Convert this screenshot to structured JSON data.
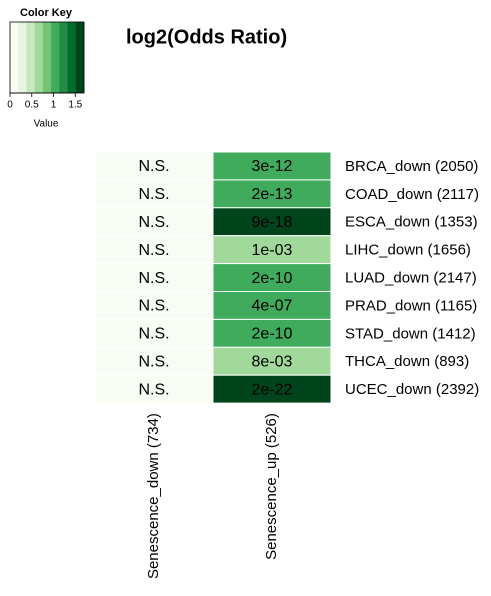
{
  "chart_data": {
    "type": "heatmap",
    "title": "log2(Odds Ratio)",
    "key_title": "Color Key",
    "key_label": "Value",
    "key_lim": [
      0,
      1.7
    ],
    "key_ticks": [
      0,
      0.5,
      1,
      1.5
    ],
    "colors": [
      "#f7fcf5",
      "#e5f5e0",
      "#c7e9c0",
      "#a1d99b",
      "#74c476",
      "#41ab5d",
      "#238b45",
      "#006d2c",
      "#00441b"
    ],
    "columns": [
      "Senescence_down (734)",
      "Senescence_up (526)"
    ],
    "rows": [
      "BRCA_down (2050)",
      "COAD_down (2117)",
      "ESCA_down (1353)",
      "LIHC_down (1656)",
      "LUAD_down (2147)",
      "PRAD_down (1165)",
      "STAD_down (1412)",
      "THCA_down (893)",
      "UCEC_down (2392)"
    ],
    "values": [
      [
        0.1,
        1.1
      ],
      [
        0.1,
        1.1
      ],
      [
        0.1,
        1.65
      ],
      [
        0.1,
        0.6
      ],
      [
        0.1,
        1.05
      ],
      [
        0.1,
        1.0
      ],
      [
        0.1,
        1.05
      ],
      [
        0.1,
        0.6
      ],
      [
        0.1,
        1.6
      ]
    ],
    "cell_texts": [
      [
        "N.S.",
        "3e-12"
      ],
      [
        "N.S.",
        "2e-13"
      ],
      [
        "N.S.",
        "9e-18"
      ],
      [
        "N.S.",
        "1e-03"
      ],
      [
        "N.S.",
        "2e-10"
      ],
      [
        "N.S.",
        "4e-07"
      ],
      [
        "N.S.",
        "2e-10"
      ],
      [
        "N.S.",
        "8e-03"
      ],
      [
        "N.S.",
        "2e-22"
      ]
    ]
  }
}
